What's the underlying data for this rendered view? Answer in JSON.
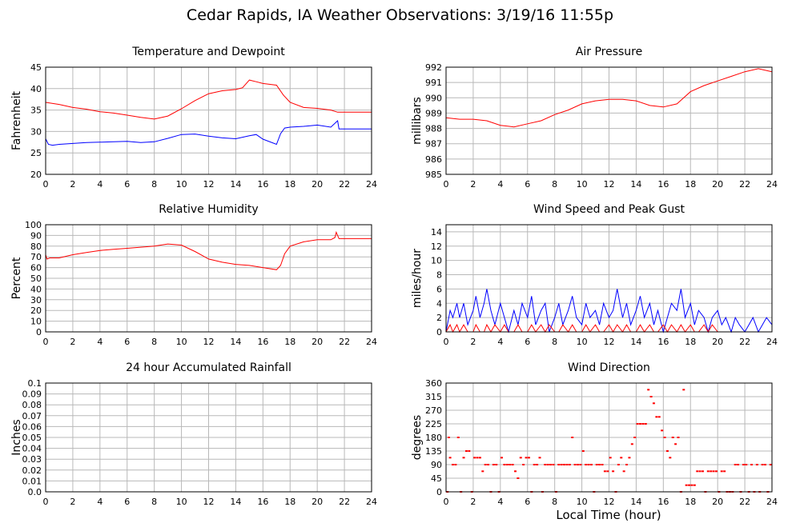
{
  "title": "Cedar Rapids, IA Weather Observations: 3/19/16 11:55p",
  "x_axis_title": "Local Time (hour)",
  "colors": {
    "primary": "#ff0000",
    "secondary": "#0000ff",
    "grid": "#b8b8b8"
  },
  "chart_data": [
    {
      "id": "temp",
      "type": "line",
      "title": "Temperature and Dewpoint",
      "ylabel": "Fahrenheit",
      "xlim": [
        0,
        24
      ],
      "ylim": [
        20,
        45
      ],
      "xticks": [
        0,
        2,
        4,
        6,
        8,
        10,
        12,
        14,
        16,
        18,
        20,
        22,
        24
      ],
      "yticks": [
        20,
        25,
        30,
        35,
        40,
        45
      ],
      "grid": true,
      "series": [
        {
          "color": "#ff0000",
          "x": [
            0,
            1,
            2,
            3,
            4,
            5,
            6,
            7,
            8,
            9,
            10,
            11,
            12,
            13,
            14,
            14.5,
            15,
            15.5,
            16,
            17,
            17.5,
            18,
            19,
            20,
            21,
            21.5,
            22,
            23,
            24
          ],
          "y": [
            36.8,
            36.3,
            35.6,
            35.2,
            34.6,
            34.3,
            33.8,
            33.3,
            32.9,
            33.6,
            35.3,
            37.2,
            38.8,
            39.5,
            39.8,
            40.2,
            42.0,
            41.6,
            41.2,
            40.8,
            38.5,
            36.8,
            35.6,
            35.4,
            35.0,
            34.5,
            34.5,
            34.5,
            34.5
          ]
        },
        {
          "color": "#0000ff",
          "x": [
            0,
            0.2,
            0.5,
            1,
            2,
            3,
            4,
            5,
            6,
            7,
            8,
            9,
            10,
            11,
            12,
            13,
            14,
            15,
            15.5,
            16,
            17,
            17.3,
            17.6,
            18,
            19,
            20,
            21,
            21.5,
            21.6,
            22,
            23,
            24
          ],
          "y": [
            28.3,
            27.0,
            26.8,
            27.0,
            27.2,
            27.4,
            27.5,
            27.6,
            27.7,
            27.4,
            27.6,
            28.4,
            29.3,
            29.4,
            28.9,
            28.5,
            28.3,
            29.0,
            29.3,
            28.2,
            27.0,
            29.5,
            30.8,
            31.0,
            31.2,
            31.5,
            31.0,
            32.5,
            30.6,
            30.6,
            30.6,
            30.6
          ]
        }
      ]
    },
    {
      "id": "pressure",
      "type": "line",
      "title": "Air Pressure",
      "ylabel": "millibars",
      "xlim": [
        0,
        24
      ],
      "ylim": [
        985,
        992
      ],
      "xticks": [
        0,
        2,
        4,
        6,
        8,
        10,
        12,
        14,
        16,
        18,
        20,
        22,
        24
      ],
      "yticks": [
        985,
        986,
        987,
        988,
        989,
        990,
        991,
        992
      ],
      "grid": true,
      "series": [
        {
          "color": "#ff0000",
          "x": [
            0,
            1,
            2,
            3,
            4,
            5,
            6,
            7,
            8,
            9,
            10,
            11,
            12,
            13,
            14,
            15,
            16,
            17,
            18,
            19,
            20,
            21,
            22,
            23,
            24
          ],
          "y": [
            988.7,
            988.6,
            988.6,
            988.5,
            988.2,
            988.1,
            988.3,
            988.5,
            988.9,
            989.2,
            989.6,
            989.8,
            989.9,
            989.9,
            989.8,
            989.5,
            989.4,
            989.6,
            990.4,
            990.8,
            991.1,
            991.4,
            991.7,
            991.9,
            991.7
          ]
        }
      ]
    },
    {
      "id": "humidity",
      "type": "line",
      "title": "Relative Humidity",
      "ylabel": "Percent",
      "xlim": [
        0,
        24
      ],
      "ylim": [
        0,
        100
      ],
      "xticks": [
        0,
        2,
        4,
        6,
        8,
        10,
        12,
        14,
        16,
        18,
        20,
        22,
        24
      ],
      "yticks": [
        0,
        10,
        20,
        30,
        40,
        50,
        60,
        70,
        80,
        90,
        100
      ],
      "grid": true,
      "series": [
        {
          "color": "#ff0000",
          "x": [
            0,
            0.1,
            0.3,
            1,
            2,
            3,
            4,
            5,
            6,
            7,
            8,
            9,
            10,
            11,
            12,
            13,
            14,
            15,
            16,
            17,
            17.3,
            17.6,
            18,
            19,
            20,
            21,
            21.3,
            21.4,
            21.6,
            22,
            23,
            24
          ],
          "y": [
            72,
            68,
            69,
            69,
            72,
            74,
            76,
            77,
            78,
            79,
            80,
            82,
            81,
            75,
            68,
            65,
            63,
            62,
            60,
            58,
            62,
            73,
            80,
            84,
            86,
            86,
            88,
            93,
            87,
            87,
            87,
            87
          ]
        }
      ]
    },
    {
      "id": "wind",
      "type": "line",
      "title": "Wind Speed and Peak Gust",
      "ylabel": "miles/hour",
      "xlim": [
        0,
        24
      ],
      "ylim": [
        0,
        15
      ],
      "xticks": [
        0,
        2,
        4,
        6,
        8,
        10,
        12,
        14,
        16,
        18,
        20,
        22,
        24
      ],
      "yticks": [
        0,
        2,
        4,
        6,
        8,
        10,
        12,
        14
      ],
      "grid": true,
      "series": [
        {
          "color": "#0000ff",
          "x": [
            0,
            0.3,
            0.5,
            0.8,
            1.0,
            1.3,
            1.6,
            2.0,
            2.2,
            2.5,
            2.8,
            3.0,
            3.3,
            3.6,
            4.0,
            4.3,
            4.6,
            5.0,
            5.3,
            5.6,
            6.0,
            6.3,
            6.6,
            7.0,
            7.3,
            7.6,
            8.0,
            8.3,
            8.6,
            9.0,
            9.3,
            9.6,
            10.0,
            10.3,
            10.6,
            11.0,
            11.3,
            11.6,
            12.0,
            12.3,
            12.6,
            13.0,
            13.3,
            13.6,
            14.0,
            14.3,
            14.6,
            15.0,
            15.3,
            15.6,
            16.0,
            16.3,
            16.6,
            17.0,
            17.3,
            17.6,
            18.0,
            18.3,
            18.6,
            19.0,
            19.3,
            19.6,
            20.0,
            20.3,
            20.6,
            21.0,
            21.3,
            21.6,
            22.0,
            22.3,
            22.6,
            23.0,
            23.3,
            23.6,
            24.0
          ],
          "y": [
            0,
            3,
            2,
            4,
            2,
            4,
            1,
            3,
            5,
            2,
            4,
            6,
            3,
            1,
            4,
            2,
            0,
            3,
            1,
            4,
            2,
            5,
            1,
            3,
            4,
            0,
            2,
            4,
            1,
            3,
            5,
            2,
            1,
            4,
            2,
            3,
            1,
            4,
            2,
            3,
            6,
            2,
            4,
            1,
            3,
            5,
            2,
            4,
            1,
            3,
            0,
            2,
            4,
            3,
            6,
            2,
            4,
            1,
            3,
            2,
            0,
            2,
            3,
            1,
            2,
            0,
            2,
            1,
            0,
            1,
            2,
            0,
            1,
            2,
            1
          ]
        },
        {
          "color": "#ff0000",
          "x": [
            0,
            0.3,
            0.5,
            0.8,
            1.0,
            1.3,
            1.6,
            2.0,
            2.2,
            2.5,
            2.8,
            3.0,
            3.3,
            3.6,
            4.0,
            4.3,
            4.6,
            5.0,
            5.3,
            5.6,
            6.0,
            6.3,
            6.6,
            7.0,
            7.3,
            7.6,
            8.0,
            8.3,
            8.6,
            9.0,
            9.3,
            9.6,
            10.0,
            10.3,
            10.6,
            11.0,
            11.3,
            11.6,
            12.0,
            12.3,
            12.6,
            13.0,
            13.3,
            13.6,
            14.0,
            14.3,
            14.6,
            15.0,
            15.3,
            15.6,
            16.0,
            16.3,
            16.6,
            17.0,
            17.3,
            17.6,
            18.0,
            18.3,
            18.6,
            19.0,
            19.3,
            19.6,
            20.0,
            24.0
          ],
          "y": [
            0,
            1,
            0,
            1,
            0,
            1,
            0,
            0,
            1,
            0,
            0,
            1,
            0,
            1,
            0,
            1,
            0,
            0,
            1,
            0,
            0,
            1,
            0,
            1,
            0,
            1,
            0,
            0,
            1,
            0,
            1,
            0,
            0,
            1,
            0,
            1,
            0,
            0,
            1,
            0,
            1,
            0,
            1,
            0,
            0,
            1,
            0,
            1,
            0,
            0,
            1,
            0,
            1,
            0,
            1,
            0,
            1,
            0,
            0,
            1,
            0,
            1,
            0,
            0
          ]
        }
      ]
    },
    {
      "id": "rain",
      "type": "line",
      "title": "24 hour Accumulated Rainfall",
      "ylabel": "Inches",
      "xlim": [
        0,
        24
      ],
      "ylim": [
        0,
        0.1
      ],
      "xticks": [
        0,
        2,
        4,
        6,
        8,
        10,
        12,
        14,
        16,
        18,
        20,
        22,
        24
      ],
      "yticks": [
        0.0,
        0.01,
        0.02,
        0.03,
        0.04,
        0.05,
        0.06,
        0.07,
        0.08,
        0.09,
        0.1
      ],
      "ytick_labels": [
        "0.0",
        "0.01",
        "0.02",
        "0.03",
        "0.04",
        "0.05",
        "0.06",
        "0.07",
        "0.08",
        "0.09",
        "0.1"
      ],
      "grid": true,
      "series": [
        {
          "color": "#ff0000",
          "x": [
            0,
            24
          ],
          "y": [
            0,
            0
          ]
        }
      ]
    },
    {
      "id": "direction",
      "type": "scatter",
      "title": "Wind Direction",
      "ylabel": "degrees",
      "xlabel": "Local Time (hour)",
      "xlim": [
        0,
        24
      ],
      "ylim": [
        0,
        360
      ],
      "xticks": [
        0,
        2,
        4,
        6,
        8,
        10,
        12,
        14,
        16,
        18,
        20,
        22,
        24
      ],
      "yticks": [
        0,
        45,
        90,
        135,
        180,
        225,
        270,
        315,
        360
      ],
      "grid": true,
      "series": [
        {
          "color": "#ff0000",
          "marker": "point",
          "x": [
            0.1,
            0.2,
            0.3,
            0.5,
            0.7,
            0.9,
            1.1,
            1.3,
            1.5,
            1.7,
            1.9,
            2.1,
            2.3,
            2.5,
            2.7,
            2.9,
            3.1,
            3.3,
            3.5,
            3.7,
            3.9,
            4.1,
            4.3,
            4.5,
            4.7,
            4.9,
            5.1,
            5.3,
            5.5,
            5.7,
            5.9,
            6.1,
            6.3,
            6.5,
            6.7,
            6.9,
            7.1,
            7.3,
            7.5,
            7.7,
            7.9,
            8.1,
            8.3,
            8.5,
            8.7,
            8.9,
            9.1,
            9.3,
            9.5,
            9.7,
            9.9,
            10.1,
            10.3,
            10.5,
            10.7,
            10.9,
            11.1,
            11.3,
            11.5,
            11.7,
            11.9,
            12.1,
            12.3,
            12.5,
            12.7,
            12.9,
            13.1,
            13.3,
            13.5,
            13.7,
            13.9,
            14.1,
            14.3,
            14.5,
            14.7,
            14.9,
            15.1,
            15.3,
            15.5,
            15.7,
            15.9,
            16.1,
            16.3,
            16.5,
            16.7,
            16.9,
            17.1,
            17.3,
            17.5,
            17.7,
            17.9,
            18.1,
            18.3,
            18.5,
            18.7,
            18.9,
            19.1,
            19.3,
            19.5,
            19.7,
            19.9,
            20.1,
            20.3,
            20.5,
            20.7,
            20.9,
            21.1,
            21.3,
            21.5,
            21.7,
            21.9,
            22.1,
            22.3,
            22.5,
            22.7,
            22.9,
            23.1,
            23.3,
            23.5,
            23.7,
            23.9
          ],
          "y": [
            0,
            180,
            113,
            90,
            90,
            180,
            0,
            113,
            135,
            135,
            0,
            113,
            113,
            113,
            68,
            90,
            90,
            0,
            90,
            90,
            0,
            113,
            90,
            90,
            90,
            90,
            68,
            45,
            113,
            90,
            113,
            113,
            0,
            90,
            90,
            113,
            0,
            90,
            90,
            90,
            90,
            0,
            90,
            90,
            90,
            90,
            90,
            180,
            90,
            90,
            90,
            135,
            90,
            90,
            90,
            0,
            90,
            90,
            90,
            68,
            68,
            113,
            68,
            0,
            90,
            113,
            68,
            90,
            113,
            158,
            180,
            225,
            225,
            225,
            225,
            338,
            315,
            293,
            248,
            248,
            203,
            180,
            135,
            113,
            180,
            158,
            180,
            0,
            338,
            22,
            22,
            22,
            22,
            68,
            68,
            68,
            0,
            68,
            68,
            68,
            68,
            0,
            68,
            68,
            0,
            0,
            0,
            90,
            90,
            0,
            90,
            90,
            0,
            90,
            0,
            90,
            0,
            90,
            90,
            0,
            90
          ]
        }
      ]
    }
  ]
}
